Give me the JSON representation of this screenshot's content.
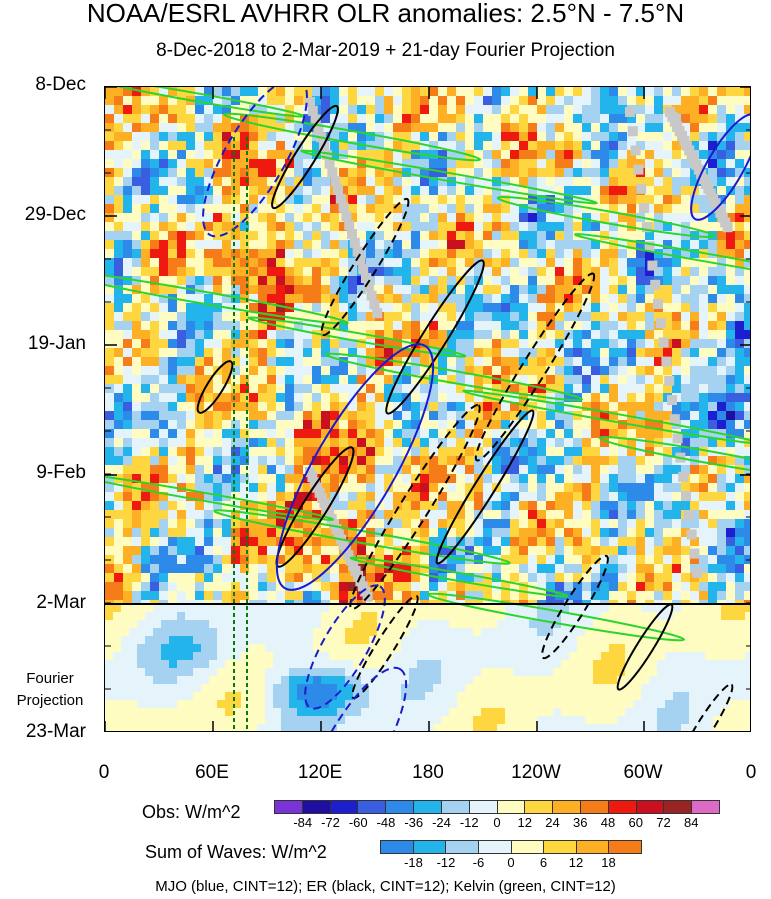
{
  "chart_data": {
    "type": "heatmap",
    "title": "NOAA/ESRL AVHRR OLR anomalies: 2.5°N - 7.5°N",
    "subtitle": "8-Dec-2018 to 2-Mar-2019 + 21-day Fourier Projection",
    "y_tick_labels": [
      "8-Dec",
      "29-Dec",
      "19-Jan",
      "9-Feb",
      "2-Mar",
      "23-Mar"
    ],
    "x_tick_labels": [
      "0",
      "60E",
      "120E",
      "180",
      "120W",
      "60W",
      "0"
    ],
    "x_range_deg_east": [
      0,
      360
    ],
    "y_range": [
      "8-Dec-2018",
      "23-Mar-2019"
    ],
    "projection_label": [
      "Fourier",
      "Projection"
    ],
    "obs_colorbar": {
      "title": "Obs: W/m^2",
      "levels": [
        "-84",
        "-72",
        "-60",
        "-48",
        "-36",
        "-24",
        "-12",
        "0",
        "12",
        "24",
        "36",
        "48",
        "60",
        "72",
        "84"
      ],
      "colors": [
        "#7a33d6",
        "#1e0fa0",
        "#1c1ed0",
        "#3a5ee0",
        "#2e8ae8",
        "#24b4ec",
        "#a6d2f2",
        "#e4f4fa",
        "#fefcc0",
        "#fed640",
        "#fdb024",
        "#f67c1a",
        "#ee1a10",
        "#c8101e",
        "#9a2424",
        "#de6ac8"
      ]
    },
    "waves_colorbar": {
      "title": "Sum of Waves: W/m^2",
      "levels": [
        "-18",
        "-12",
        "-6",
        "0",
        "6",
        "12",
        "18"
      ],
      "colors": [
        "#2e8ae8",
        "#24b4ec",
        "#a6d2f2",
        "#e4f4fa",
        "#fefcc0",
        "#fed640",
        "#fdb024",
        "#f67c1a"
      ]
    },
    "contour_legend": "MJO (blue, CINT=12); ER (black, CINT=12); Kelvin (green, CINT=12)",
    "contours": {
      "mjo": {
        "color": "#1a1ad0",
        "cint": 12
      },
      "er": {
        "color": "#000000",
        "cint": 12
      },
      "kelvin": {
        "color": "#2ad62a",
        "cint": 12
      }
    }
  }
}
